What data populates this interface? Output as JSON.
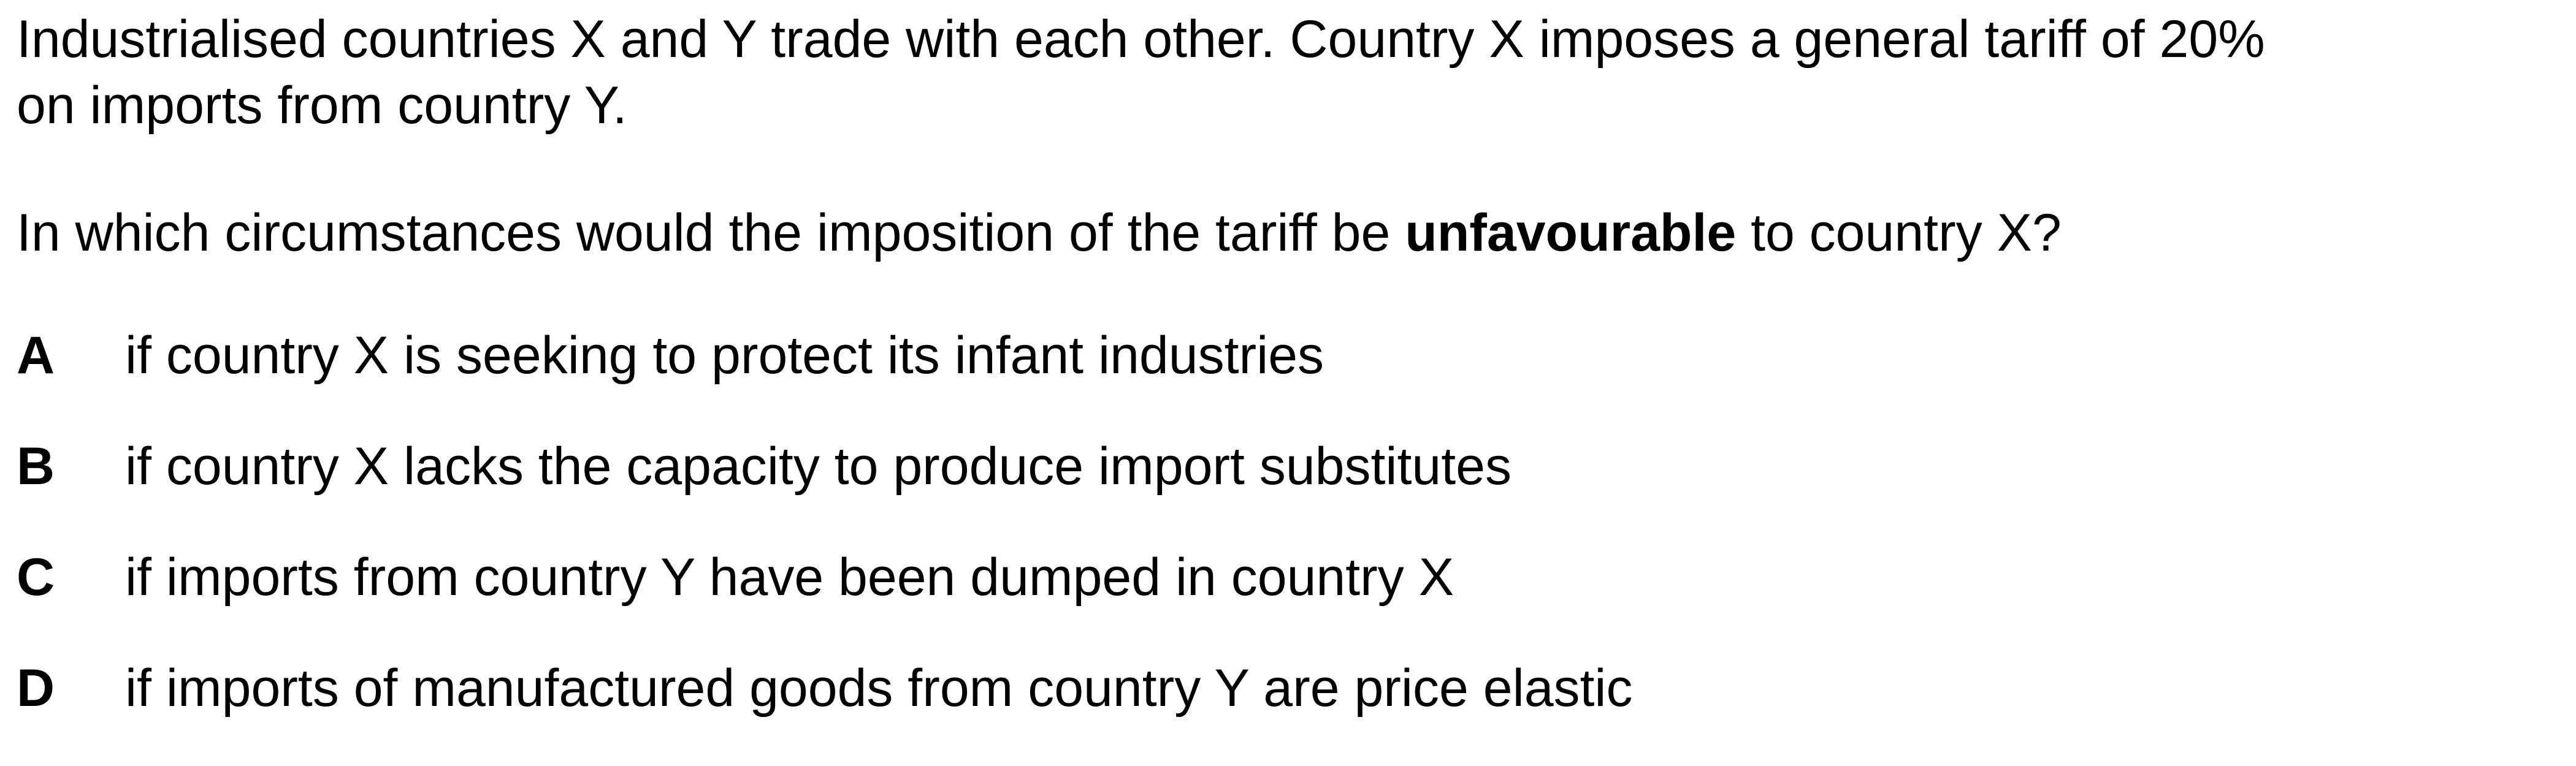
{
  "intro": {
    "line1": "Industrialised countries X and Y trade with each other. Country X imposes a general tariff of 20%",
    "line2": "on imports from country Y."
  },
  "question": {
    "before": "In which circumstances would the imposition of the tariff be ",
    "emphasis": "unfavourable",
    "after": " to country X?"
  },
  "options": [
    {
      "letter": "A",
      "text": "if country X is seeking to protect its infant industries"
    },
    {
      "letter": "B",
      "text": "if country X lacks the capacity to produce import substitutes"
    },
    {
      "letter": "C",
      "text": "if imports from country Y have been dumped in country X"
    },
    {
      "letter": "D",
      "text": "if imports of manufactured goods from country Y are price elastic"
    }
  ]
}
